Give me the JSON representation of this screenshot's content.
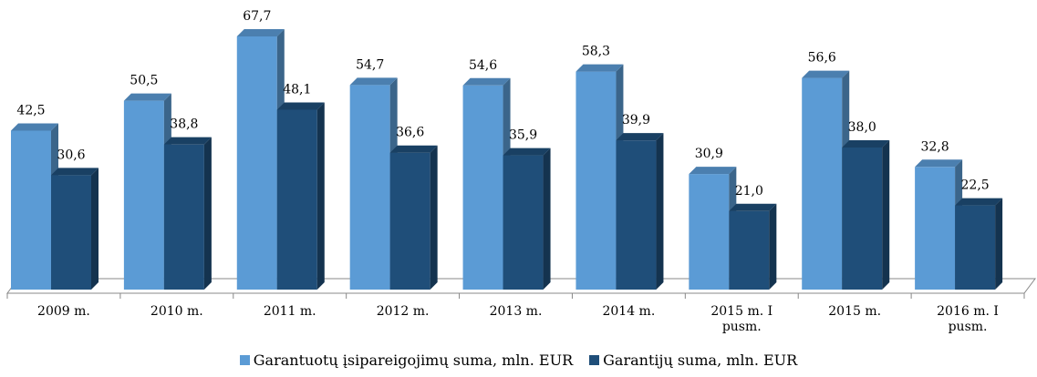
{
  "chart_data": {
    "type": "bar3d",
    "categories": [
      "2009 m.",
      "2010 m.",
      "2011 m.",
      "2012 m.",
      "2013 m.",
      "2014 m.",
      "2015 m. I pusm.",
      "2015 m.",
      "2016 m. I pusm."
    ],
    "series": [
      {
        "name": "Garantuotų įsipareigojimų suma, mln. EUR",
        "color": "#5b9bd5",
        "values": [
          42.5,
          50.5,
          67.7,
          54.7,
          54.6,
          58.3,
          30.9,
          56.6,
          32.8
        ],
        "value_labels": [
          "42,5",
          "50,5",
          "67,7",
          "54,7",
          "54,6",
          "58,3",
          "30,9",
          "56,6",
          "32,8"
        ]
      },
      {
        "name": "Garantijų suma, mln. EUR",
        "color": "#1f4e79",
        "values": [
          30.6,
          38.8,
          48.1,
          36.6,
          35.9,
          39.9,
          21.0,
          38.0,
          22.5
        ],
        "value_labels": [
          "30,6",
          "38,8",
          "48,1",
          "36,6",
          "35,9",
          "39,9",
          "21,0",
          "38,0",
          "22,5"
        ]
      }
    ],
    "legend": "bottom"
  }
}
